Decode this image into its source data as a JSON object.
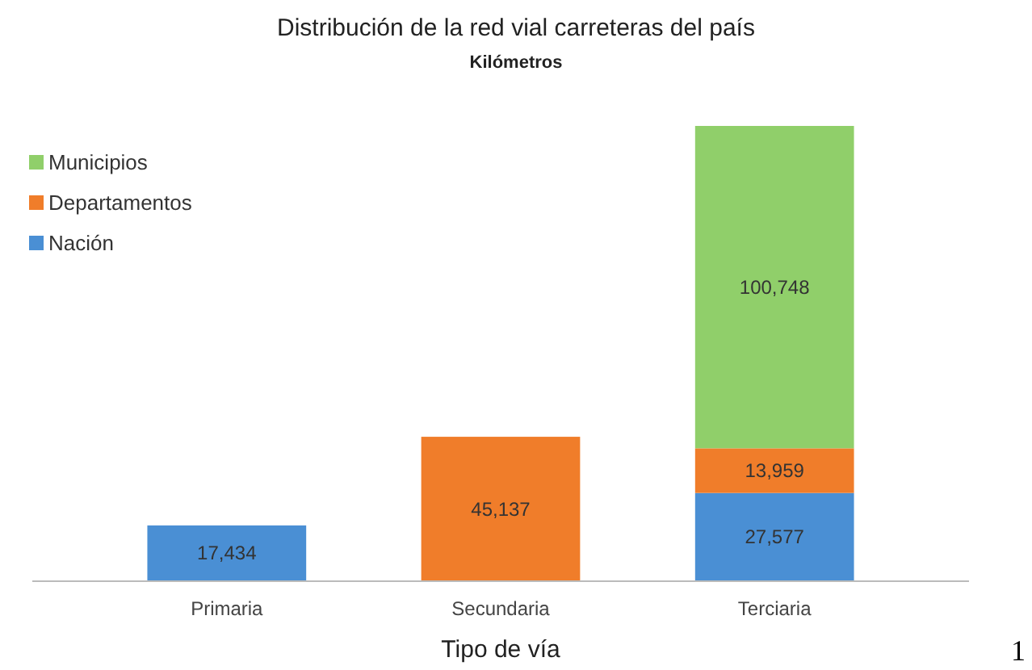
{
  "chart_data": {
    "type": "bar",
    "stacked": true,
    "title": "Distribución de la red vial carreteras del país",
    "subtitle": "Kilómetros",
    "xlabel": "Tipo de vía",
    "categories": [
      "Primaria",
      "Secundaria",
      "Terciaria"
    ],
    "series": [
      {
        "name": "Nación",
        "color": "#4a8fd4",
        "values": [
          17434,
          null,
          27577
        ],
        "value_labels": [
          "17,434",
          null,
          "27,577"
        ]
      },
      {
        "name": "Departamentos",
        "color": "#f07d2a",
        "values": [
          null,
          45137,
          13959
        ],
        "value_labels": [
          null,
          "45,137",
          "13,959"
        ]
      },
      {
        "name": "Municipios",
        "color": "#90cf6a",
        "values": [
          null,
          null,
          100748
        ],
        "value_labels": [
          null,
          null,
          "100,748"
        ]
      }
    ],
    "legend": "top left",
    "annotations": [
      "1"
    ]
  }
}
